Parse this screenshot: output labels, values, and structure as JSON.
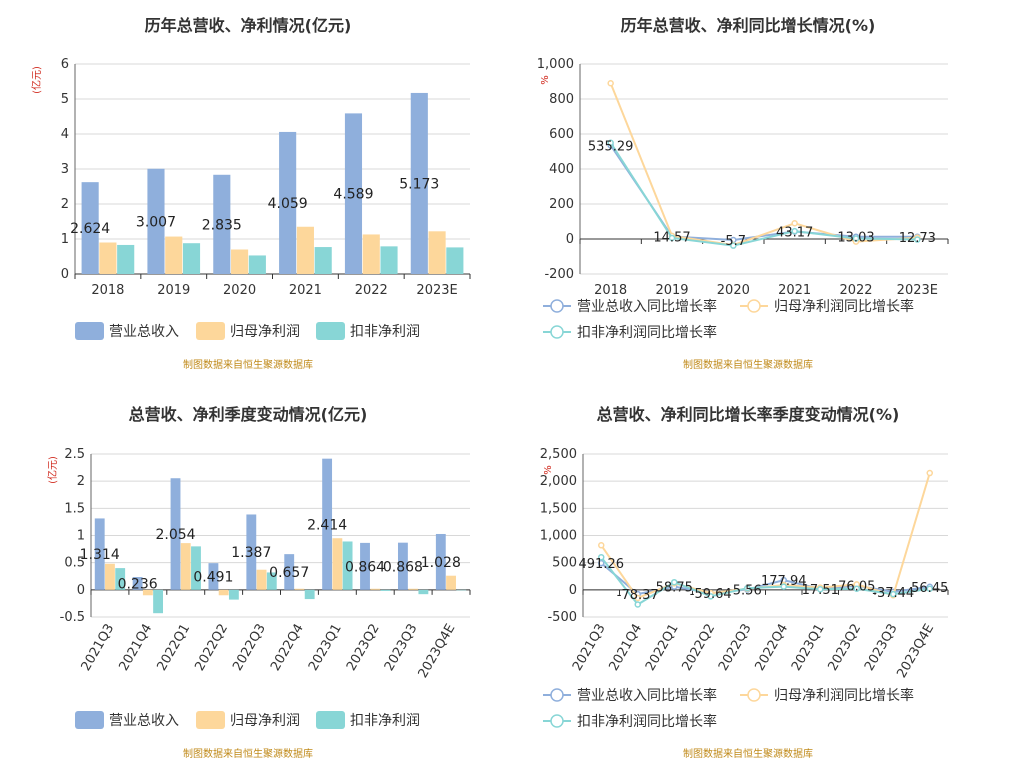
{
  "colors": {
    "revenue": "#8fafdc",
    "parent_profit": "#fdd79b",
    "deducted_profit": "#88d6d6",
    "axis_unit": "#d0281c",
    "source": "#c08a1a"
  },
  "chart_data": [
    {
      "type": "bar",
      "title": "历年总营收、净利情况(亿元)",
      "ylabel": "(亿元)",
      "ylim": [
        0,
        6
      ],
      "yticks": [
        "0",
        "1",
        "2",
        "3",
        "4",
        "5",
        "6"
      ],
      "grid": true,
      "categories": [
        "2018",
        "2019",
        "2020",
        "2021",
        "2022",
        "2023E"
      ],
      "series": [
        {
          "name": "营业总收入",
          "values": [
            2.624,
            3.007,
            2.835,
            4.059,
            4.589,
            5.173
          ]
        },
        {
          "name": "归母净利润",
          "values": [
            0.9,
            1.07,
            0.7,
            1.35,
            1.13,
            1.22
          ]
        },
        {
          "name": "扣非净利润",
          "values": [
            0.83,
            0.88,
            0.53,
            0.77,
            0.79,
            0.76
          ]
        }
      ],
      "labels": [
        "2.624",
        "3.007",
        "2.835",
        "4.059",
        "4.589",
        "5.173"
      ],
      "legend": "bottom",
      "source": "制图数据来自恒生聚源数据库"
    },
    {
      "type": "line",
      "title": "历年总营收、净利同比增长情况(%)",
      "ylabel": "%",
      "ylim": [
        -200,
        1000
      ],
      "yticks": [
        "-200",
        "0",
        "200",
        "400",
        "600",
        "800",
        "1,000"
      ],
      "grid": true,
      "categories": [
        "2018",
        "2019",
        "2020",
        "2021",
        "2022",
        "2023E"
      ],
      "series": [
        {
          "name": "营业总收入同比增长率",
          "values": [
            535.29,
            14.57,
            -5.7,
            43.17,
            13.03,
            12.73
          ]
        },
        {
          "name": "归母净利润同比增长率",
          "values": [
            890,
            18,
            -35,
            90,
            -15,
            8
          ]
        },
        {
          "name": "扣非净利润同比增长率",
          "values": [
            550,
            6,
            -38,
            45,
            3,
            -3
          ]
        }
      ],
      "labels": [
        "535.29",
        "14.57",
        "-5.7",
        "43.17",
        "13.03",
        "12.73"
      ],
      "legend": "bottom",
      "source": "制图数据来自恒生聚源数据库"
    },
    {
      "type": "bar",
      "title": "总营收、净利季度变动情况(亿元)",
      "ylabel": "(亿元)",
      "ylim": [
        -0.5,
        2.5
      ],
      "yticks": [
        "-0.5",
        "0",
        "0.5",
        "1",
        "1.5",
        "2",
        "2.5"
      ],
      "grid": true,
      "categories": [
        "2021Q3",
        "2021Q4",
        "2022Q1",
        "2022Q2",
        "2022Q3",
        "2022Q4",
        "2023Q1",
        "2023Q2",
        "2023Q3",
        "2023Q4E"
      ],
      "series": [
        {
          "name": "营业总收入",
          "values": [
            1.314,
            0.236,
            2.054,
            0.491,
            1.387,
            0.657,
            2.414,
            0.864,
            0.868,
            1.028
          ]
        },
        {
          "name": "归母净利润",
          "values": [
            0.48,
            -0.1,
            0.86,
            -0.1,
            0.37,
            0.02,
            0.95,
            0.02,
            0.02,
            0.26
          ]
        },
        {
          "name": "扣非净利润",
          "values": [
            0.4,
            -0.43,
            0.8,
            -0.18,
            0.32,
            -0.17,
            0.89,
            -0.02,
            -0.08,
            0.0
          ]
        }
      ],
      "labels": [
        "1.314",
        "0.236",
        "2.054",
        "0.491",
        "1.387",
        "0.657",
        "2.414",
        "0.864",
        "0.868",
        "1.028"
      ],
      "legend": "bottom",
      "source": "制图数据来自恒生聚源数据库"
    },
    {
      "type": "line",
      "title": "总营收、净利同比增长率季度变动情况(%)",
      "ylabel": "%",
      "ylim": [
        -500,
        2500
      ],
      "yticks": [
        "-500",
        "0",
        "500",
        "1,000",
        "1,500",
        "2,000",
        "2,500"
      ],
      "grid": true,
      "categories": [
        "2021Q3",
        "2021Q4",
        "2022Q1",
        "2022Q2",
        "2022Q3",
        "2022Q4",
        "2023Q1",
        "2023Q2",
        "2023Q3",
        "2023Q4E"
      ],
      "series": [
        {
          "name": "营业总收入同比增长率",
          "values": [
            491.26,
            -78.37,
            58.75,
            -59.64,
            5.56,
            177.94,
            17.51,
            76.05,
            -37.44,
            56.45
          ]
        },
        {
          "name": "归母净利润同比增长率",
          "values": [
            820,
            -150,
            120,
            -60,
            20,
            90,
            40,
            100,
            -100,
            2150
          ]
        },
        {
          "name": "扣非净利润同比增长率",
          "values": [
            600,
            -270,
            140,
            -120,
            30,
            60,
            10,
            20,
            -80,
            20
          ]
        }
      ],
      "labels": [
        "491.26",
        "-78.37",
        "58.75",
        "-59.64",
        "5.56",
        "177.94",
        "17.51",
        "76.05",
        "-37.44",
        "56.45"
      ],
      "legend": "bottom",
      "source": "制图数据来自恒生聚源数据库"
    }
  ]
}
